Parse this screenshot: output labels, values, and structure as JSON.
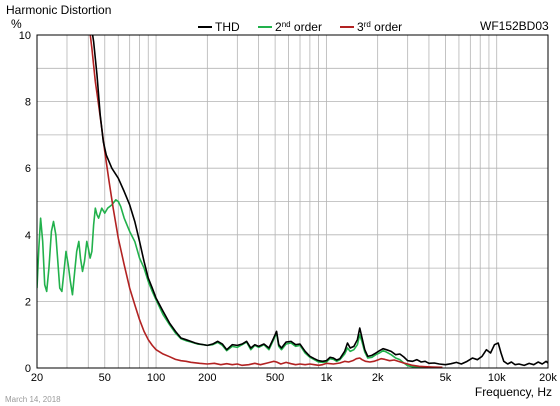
{
  "chart_data": {
    "type": "line",
    "title": "Harmonic Distortion",
    "ylabel": "%",
    "xlabel": "Frequency, Hz",
    "model": "WF152BD03",
    "date": "March 14, 2018",
    "x_scale": "log",
    "xlim": [
      20,
      20000
    ],
    "ylim": [
      0,
      10
    ],
    "grid": true,
    "legend_position": "top",
    "x_ticks": [
      {
        "v": 20,
        "label": "20"
      },
      {
        "v": 50,
        "label": "50"
      },
      {
        "v": 100,
        "label": "100"
      },
      {
        "v": 200,
        "label": "200"
      },
      {
        "v": 500,
        "label": "500"
      },
      {
        "v": 1000,
        "label": "1k"
      },
      {
        "v": 2000,
        "label": "2k"
      },
      {
        "v": 5000,
        "label": "5k"
      },
      {
        "v": 10000,
        "label": "10k"
      },
      {
        "v": 20000,
        "label": "20k"
      }
    ],
    "y_ticks": [
      {
        "v": 0,
        "label": "0"
      },
      {
        "v": 2,
        "label": "2"
      },
      {
        "v": 4,
        "label": "4"
      },
      {
        "v": 6,
        "label": "6"
      },
      {
        "v": 8,
        "label": "8"
      },
      {
        "v": 10,
        "label": "10"
      }
    ],
    "series": [
      {
        "name": "THD",
        "color": "#000000",
        "points": [
          [
            41,
            10.5
          ],
          [
            43,
            9.8
          ],
          [
            45,
            8.8
          ],
          [
            47,
            7.6
          ],
          [
            49,
            6.8
          ],
          [
            51,
            6.4
          ],
          [
            55,
            6.0
          ],
          [
            60,
            5.7
          ],
          [
            65,
            5.3
          ],
          [
            70,
            4.9
          ],
          [
            75,
            4.4
          ],
          [
            80,
            3.8
          ],
          [
            85,
            3.2
          ],
          [
            90,
            2.7
          ],
          [
            95,
            2.4
          ],
          [
            100,
            2.1
          ],
          [
            110,
            1.7
          ],
          [
            120,
            1.35
          ],
          [
            130,
            1.1
          ],
          [
            140,
            0.9
          ],
          [
            150,
            0.85
          ],
          [
            160,
            0.8
          ],
          [
            170,
            0.75
          ],
          [
            180,
            0.72
          ],
          [
            200,
            0.68
          ],
          [
            215,
            0.72
          ],
          [
            230,
            0.8
          ],
          [
            245,
            0.72
          ],
          [
            260,
            0.55
          ],
          [
            280,
            0.7
          ],
          [
            300,
            0.68
          ],
          [
            320,
            0.72
          ],
          [
            340,
            0.8
          ],
          [
            360,
            0.6
          ],
          [
            380,
            0.7
          ],
          [
            400,
            0.65
          ],
          [
            430,
            0.72
          ],
          [
            460,
            0.6
          ],
          [
            490,
            0.9
          ],
          [
            510,
            1.1
          ],
          [
            525,
            0.7
          ],
          [
            545,
            0.6
          ],
          [
            580,
            0.78
          ],
          [
            620,
            0.8
          ],
          [
            660,
            0.7
          ],
          [
            700,
            0.72
          ],
          [
            750,
            0.5
          ],
          [
            800,
            0.35
          ],
          [
            850,
            0.28
          ],
          [
            900,
            0.22
          ],
          [
            950,
            0.2
          ],
          [
            1000,
            0.22
          ],
          [
            1050,
            0.32
          ],
          [
            1100,
            0.3
          ],
          [
            1150,
            0.24
          ],
          [
            1200,
            0.28
          ],
          [
            1280,
            0.5
          ],
          [
            1330,
            0.75
          ],
          [
            1380,
            0.6
          ],
          [
            1450,
            0.65
          ],
          [
            1520,
            0.85
          ],
          [
            1570,
            1.2
          ],
          [
            1620,
            0.9
          ],
          [
            1680,
            0.55
          ],
          [
            1750,
            0.35
          ],
          [
            1850,
            0.38
          ],
          [
            1950,
            0.45
          ],
          [
            2050,
            0.52
          ],
          [
            2150,
            0.58
          ],
          [
            2250,
            0.55
          ],
          [
            2400,
            0.5
          ],
          [
            2550,
            0.4
          ],
          [
            2700,
            0.42
          ],
          [
            2850,
            0.33
          ],
          [
            3000,
            0.22
          ],
          [
            3200,
            0.2
          ],
          [
            3400,
            0.25
          ],
          [
            3600,
            0.18
          ],
          [
            3800,
            0.2
          ],
          [
            4000,
            0.14
          ],
          [
            4300,
            0.15
          ],
          [
            4600,
            0.12
          ],
          [
            5000,
            0.1
          ],
          [
            5400,
            0.13
          ],
          [
            5800,
            0.17
          ],
          [
            6200,
            0.12
          ],
          [
            6700,
            0.2
          ],
          [
            7200,
            0.3
          ],
          [
            7700,
            0.25
          ],
          [
            8200,
            0.35
          ],
          [
            8700,
            0.55
          ],
          [
            9200,
            0.45
          ],
          [
            9700,
            0.7
          ],
          [
            10200,
            0.75
          ],
          [
            10600,
            0.45
          ],
          [
            11000,
            0.2
          ],
          [
            11600,
            0.12
          ],
          [
            12200,
            0.18
          ],
          [
            12800,
            0.1
          ],
          [
            13500,
            0.12
          ],
          [
            14500,
            0.08
          ],
          [
            15500,
            0.14
          ],
          [
            16500,
            0.1
          ],
          [
            17500,
            0.18
          ],
          [
            18500,
            0.12
          ],
          [
            19500,
            0.2
          ],
          [
            20000,
            0.15
          ]
        ]
      },
      {
        "name": "2nd order",
        "color": "#22b14c",
        "points": [
          [
            20,
            2.4
          ],
          [
            20.5,
            3.6
          ],
          [
            21,
            4.5
          ],
          [
            21.6,
            3.8
          ],
          [
            22.2,
            2.5
          ],
          [
            22.8,
            2.3
          ],
          [
            23.5,
            3.0
          ],
          [
            24.3,
            4.1
          ],
          [
            25,
            4.4
          ],
          [
            25.8,
            4.0
          ],
          [
            26.5,
            3.2
          ],
          [
            27.2,
            2.4
          ],
          [
            28,
            2.3
          ],
          [
            28.8,
            2.9
          ],
          [
            29.6,
            3.5
          ],
          [
            30.5,
            3.1
          ],
          [
            31.4,
            2.6
          ],
          [
            32.3,
            2.2
          ],
          [
            33.3,
            2.9
          ],
          [
            34.2,
            3.5
          ],
          [
            35.2,
            3.8
          ],
          [
            36,
            3.3
          ],
          [
            37,
            2.9
          ],
          [
            38,
            3.2
          ],
          [
            39.2,
            3.8
          ],
          [
            40,
            3.6
          ],
          [
            41,
            3.3
          ],
          [
            42,
            3.5
          ],
          [
            43,
            4.3
          ],
          [
            44,
            4.8
          ],
          [
            45,
            4.6
          ],
          [
            46,
            4.5
          ],
          [
            48,
            4.8
          ],
          [
            50,
            4.65
          ],
          [
            52,
            4.8
          ],
          [
            55,
            4.9
          ],
          [
            58,
            5.05
          ],
          [
            60,
            5.0
          ],
          [
            62,
            4.85
          ],
          [
            65,
            4.5
          ],
          [
            70,
            4.1
          ],
          [
            75,
            3.8
          ],
          [
            80,
            3.3
          ],
          [
            85,
            3.0
          ],
          [
            90,
            2.6
          ],
          [
            95,
            2.3
          ],
          [
            100,
            2.05
          ],
          [
            110,
            1.6
          ],
          [
            120,
            1.3
          ],
          [
            130,
            1.05
          ],
          [
            140,
            0.88
          ],
          [
            150,
            0.82
          ],
          [
            160,
            0.78
          ],
          [
            175,
            0.72
          ],
          [
            190,
            0.7
          ],
          [
            200,
            0.68
          ],
          [
            215,
            0.7
          ],
          [
            230,
            0.77
          ],
          [
            245,
            0.68
          ],
          [
            260,
            0.52
          ],
          [
            280,
            0.65
          ],
          [
            300,
            0.62
          ],
          [
            320,
            0.7
          ],
          [
            340,
            0.78
          ],
          [
            360,
            0.55
          ],
          [
            380,
            0.68
          ],
          [
            400,
            0.62
          ],
          [
            430,
            0.7
          ],
          [
            460,
            0.55
          ],
          [
            490,
            0.85
          ],
          [
            510,
            1.05
          ],
          [
            525,
            0.65
          ],
          [
            545,
            0.55
          ],
          [
            580,
            0.72
          ],
          [
            620,
            0.75
          ],
          [
            660,
            0.65
          ],
          [
            700,
            0.68
          ],
          [
            750,
            0.45
          ],
          [
            800,
            0.32
          ],
          [
            850,
            0.25
          ],
          [
            900,
            0.18
          ],
          [
            950,
            0.17
          ],
          [
            1000,
            0.18
          ],
          [
            1050,
            0.28
          ],
          [
            1100,
            0.26
          ],
          [
            1150,
            0.2
          ],
          [
            1200,
            0.25
          ],
          [
            1280,
            0.42
          ],
          [
            1330,
            0.6
          ],
          [
            1380,
            0.5
          ],
          [
            1450,
            0.55
          ],
          [
            1520,
            0.7
          ],
          [
            1570,
            1.0
          ],
          [
            1620,
            0.78
          ],
          [
            1680,
            0.48
          ],
          [
            1750,
            0.3
          ],
          [
            1850,
            0.32
          ],
          [
            1950,
            0.4
          ],
          [
            2050,
            0.45
          ],
          [
            2150,
            0.52
          ],
          [
            2250,
            0.48
          ],
          [
            2400,
            0.4
          ],
          [
            2550,
            0.3
          ],
          [
            2700,
            0.25
          ],
          [
            2850,
            0.15
          ],
          [
            3000,
            0.07
          ],
          [
            3200,
            0.04
          ],
          [
            3500,
            0.02
          ],
          [
            3800,
            0.01
          ],
          [
            4200,
            0.01
          ]
        ]
      },
      {
        "name": "3rd order",
        "color": "#b22222",
        "points": [
          [
            40,
            10.5
          ],
          [
            42,
            9.6
          ],
          [
            44,
            8.6
          ],
          [
            46,
            7.9
          ],
          [
            48,
            7.2
          ],
          [
            50,
            6.5
          ],
          [
            53,
            5.6
          ],
          [
            56,
            4.8
          ],
          [
            60,
            3.9
          ],
          [
            65,
            3.1
          ],
          [
            70,
            2.4
          ],
          [
            75,
            1.9
          ],
          [
            80,
            1.45
          ],
          [
            85,
            1.1
          ],
          [
            90,
            0.85
          ],
          [
            95,
            0.68
          ],
          [
            100,
            0.55
          ],
          [
            110,
            0.42
          ],
          [
            120,
            0.34
          ],
          [
            130,
            0.26
          ],
          [
            140,
            0.22
          ],
          [
            150,
            0.2
          ],
          [
            160,
            0.17
          ],
          [
            180,
            0.14
          ],
          [
            200,
            0.12
          ],
          [
            220,
            0.14
          ],
          [
            240,
            0.1
          ],
          [
            260,
            0.13
          ],
          [
            280,
            0.1
          ],
          [
            300,
            0.12
          ],
          [
            320,
            0.08
          ],
          [
            350,
            0.1
          ],
          [
            380,
            0.14
          ],
          [
            410,
            0.1
          ],
          [
            450,
            0.15
          ],
          [
            490,
            0.2
          ],
          [
            510,
            0.18
          ],
          [
            540,
            0.12
          ],
          [
            580,
            0.17
          ],
          [
            620,
            0.13
          ],
          [
            660,
            0.1
          ],
          [
            700,
            0.12
          ],
          [
            750,
            0.1
          ],
          [
            800,
            0.12
          ],
          [
            850,
            0.1
          ],
          [
            900,
            0.08
          ],
          [
            950,
            0.1
          ],
          [
            1000,
            0.14
          ],
          [
            1100,
            0.12
          ],
          [
            1200,
            0.15
          ],
          [
            1280,
            0.2
          ],
          [
            1350,
            0.18
          ],
          [
            1430,
            0.22
          ],
          [
            1500,
            0.28
          ],
          [
            1570,
            0.3
          ],
          [
            1620,
            0.25
          ],
          [
            1700,
            0.2
          ],
          [
            1800,
            0.18
          ],
          [
            1900,
            0.2
          ],
          [
            2000,
            0.24
          ],
          [
            2100,
            0.28
          ],
          [
            2200,
            0.26
          ],
          [
            2350,
            0.22
          ],
          [
            2500,
            0.24
          ],
          [
            2650,
            0.2
          ],
          [
            2800,
            0.16
          ],
          [
            3000,
            0.12
          ],
          [
            3200,
            0.08
          ],
          [
            3500,
            0.05
          ],
          [
            3800,
            0.04
          ],
          [
            4200,
            0.03
          ],
          [
            4800,
            0.02
          ]
        ]
      }
    ]
  }
}
